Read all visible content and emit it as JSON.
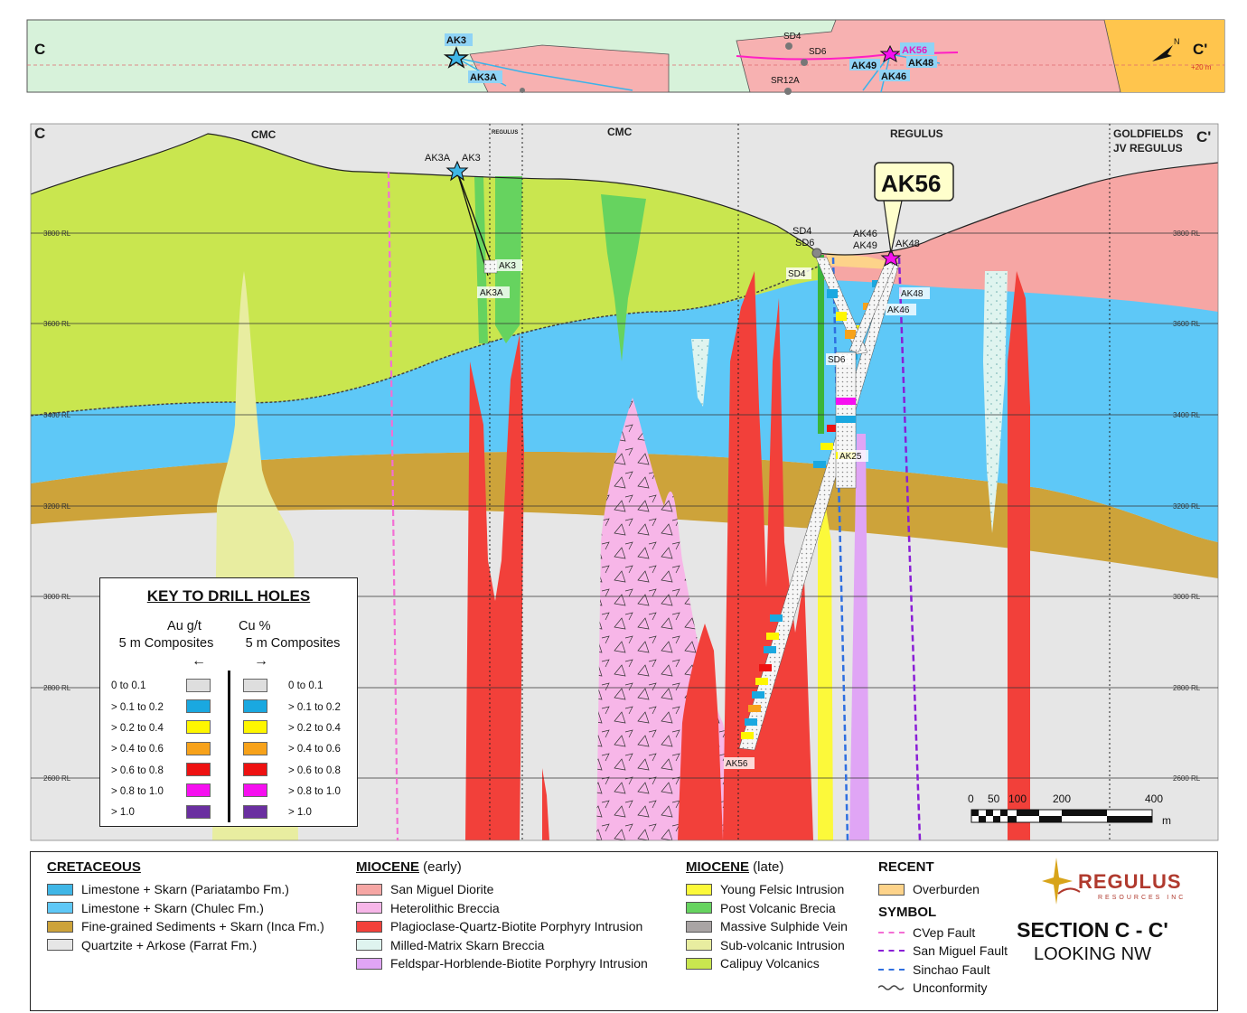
{
  "colors": {
    "limestone_pariatambo": "#3fb6e6",
    "limestone_chulec": "#5ec8f7",
    "fine_sediments": "#cda33a",
    "quartzite": "#e6e6e6",
    "san_miguel_diorite": "#f6a6a4",
    "heterolithic_breccia": "#f7b6e8",
    "porphyry": "#f2403a",
    "milled_matrix": "#dff4ef",
    "feldspar_porphyry": "#e0a5f5",
    "young_felsic": "#fcf93a",
    "post_volcanic_brecia": "#66d35f",
    "massive_sulphide": "#a9a4a4",
    "sub_volcanic": "#e8eda0",
    "calipuy": "#c9e64f",
    "overburden": "#fdd38a",
    "cvep_fault": "#f36fd4",
    "san_miguel_fault": "#8a1fd6",
    "sinchao_fault": "#2f6fe0",
    "au_0_01": "#dedede",
    "au_01_02": "#1aa8e0",
    "au_02_04": "#fef600",
    "au_04_06": "#f7a21a",
    "au_06_08": "#ee1111",
    "au_08_10": "#f60ff0",
    "au_gt_10": "#6a2fa0"
  },
  "plan": {
    "left_label": "C",
    "right_label": "C'",
    "elevation_note": "+20 m",
    "holes": [
      "AK3",
      "AK3A",
      "SD4",
      "SD6",
      "SR12A",
      "AK56",
      "AK49",
      "AK48",
      "AK46"
    ]
  },
  "section": {
    "left_label": "C",
    "right_label": "C'",
    "zones": [
      "CMC",
      "REGULUS",
      "CMC",
      "REGULUS"
    ],
    "goldfields_line1": "GOLDFIELDS",
    "goldfields_line2": "JV REGULUS",
    "rl_labels": [
      "3800 RL",
      "3600 RL",
      "3400 RL",
      "3200 RL",
      "3000 RL",
      "2800 RL",
      "2600 RL"
    ],
    "callout": "AK56",
    "collar_labels": {
      "ak3a": "AK3A",
      "ak3": "AK3",
      "sd4": "SD4",
      "sd6": "SD6",
      "ak46": "AK46",
      "ak49": "AK49",
      "ak48": "AK48"
    },
    "hole_labels": {
      "ak3": "AK3",
      "ak3a": "AK3A",
      "sd4": "SD4",
      "sd6": "SD6",
      "ak48": "AK48",
      "ak46": "AK46",
      "ak25": "AK25",
      "ak56": "AK56"
    },
    "scale_ticks": [
      "0",
      "50",
      "100",
      "200",
      "400"
    ],
    "scale_unit": "m"
  },
  "key": {
    "title": "KEY TO DRILL HOLES",
    "au_header_1": "Au g/t",
    "au_header_2": "5 m Composites",
    "cu_header_1": "Cu %",
    "cu_header_2": "5 m Composites",
    "au_ranges": [
      "0 to 0.1",
      "> 0.1 to 0.2",
      "> 0.2 to 0.4",
      "> 0.4 to 0.6",
      "> 0.6 to 0.8",
      "> 0.8 to 1.0",
      "> 1.0"
    ],
    "cu_ranges": [
      "0 to 0.1",
      "> 0.1 to 0.2",
      "> 0.2 to 0.4",
      "> 0.4 to 0.6",
      "> 0.6 to 0.8",
      "> 0.8 to 1.0",
      "> 1.0"
    ]
  },
  "legend": {
    "cretaceous": {
      "heading": "CRETACEOUS",
      "items": [
        "Limestone + Skarn (Pariatambo Fm.)",
        "Limestone + Skarn (Chulec Fm.)",
        "Fine-grained Sediments + Skarn (Inca Fm.)",
        "Quartzite + Arkose (Farrat Fm.)"
      ]
    },
    "miocene_early": {
      "heading": "MIOCENE",
      "heading_sub": " (early)",
      "items": [
        "San Miguel Diorite",
        "Heterolithic Breccia",
        "Plagioclase-Quartz-Biotite Porphyry Intrusion",
        "Milled-Matrix Skarn Breccia",
        "Feldspar-Horblende-Biotite Porphyry Intrusion"
      ]
    },
    "miocene_late": {
      "heading": "MIOCENE",
      "heading_sub": " (late)",
      "items": [
        "Young Felsic Intrusion",
        "Post Volcanic Brecia",
        "Massive Sulphide Vein",
        "Sub-volcanic Intrusion",
        "Calipuy Volcanics"
      ]
    },
    "recent": {
      "heading": "RECENT",
      "items": [
        "Overburden"
      ]
    },
    "symbol": {
      "heading": "SYMBOL",
      "items": [
        "CVep Fault",
        "San Miguel Fault",
        "Sinchao Fault",
        "Unconformity"
      ]
    }
  },
  "logo": {
    "name": "REGULUS",
    "sub": "RESOURCES INC"
  },
  "title": {
    "line1": "SECTION C - C'",
    "line2": "LOOKING NW"
  }
}
